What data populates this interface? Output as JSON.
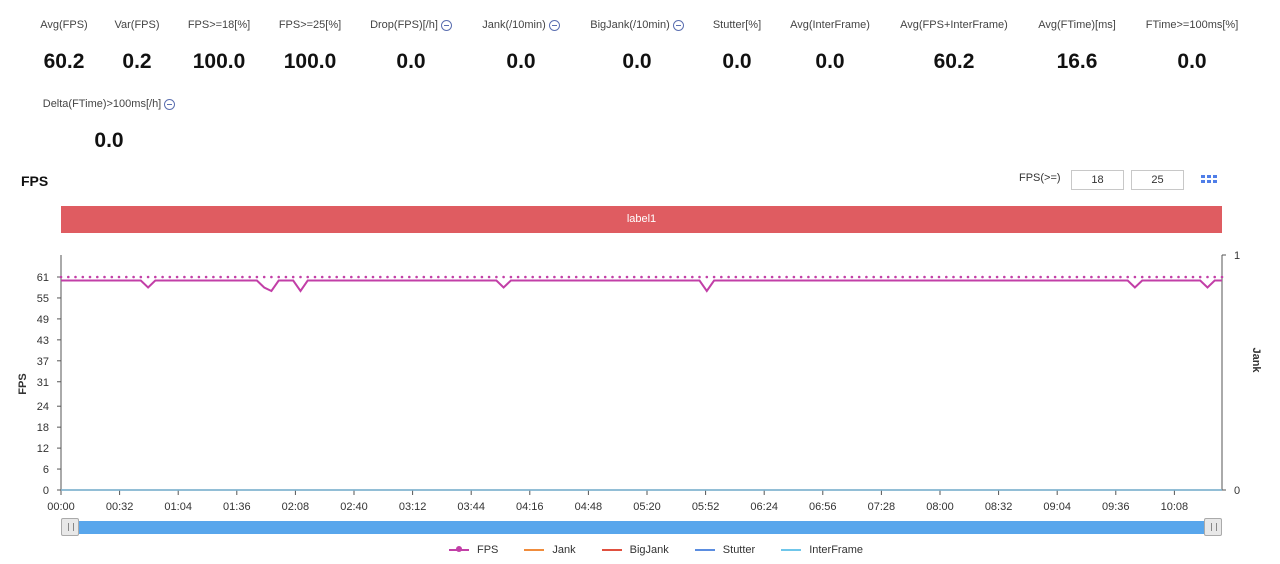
{
  "stats": [
    {
      "label": "Avg(FPS)",
      "value": "60.2",
      "info": false
    },
    {
      "label": "Var(FPS)",
      "value": "0.2",
      "info": false
    },
    {
      "label": "FPS>=18[%]",
      "value": "100.0",
      "info": false
    },
    {
      "label": "FPS>=25[%]",
      "value": "100.0",
      "info": false
    },
    {
      "label": "Drop(FPS)[/h]",
      "value": "0.0",
      "info": true
    },
    {
      "label": "Jank(/10min)",
      "value": "0.0",
      "info": true
    },
    {
      "label": "BigJank(/10min)",
      "value": "0.0",
      "info": true
    },
    {
      "label": "Stutter[%]",
      "value": "0.0",
      "info": false
    },
    {
      "label": "Avg(InterFrame)",
      "value": "0.0",
      "info": false
    },
    {
      "label": "Avg(FPS+InterFrame)",
      "value": "60.2",
      "info": false
    },
    {
      "label": "Avg(FTime)[ms]",
      "value": "16.6",
      "info": false
    },
    {
      "label": "FTime>=100ms[%]",
      "value": "0.0",
      "info": false
    },
    {
      "label": "Delta(FTime)>100ms[/h]",
      "value": "0.0",
      "info": true
    }
  ],
  "chart_title": "FPS",
  "fps_filter": {
    "label": "FPS(>=)",
    "values": [
      "18",
      "25"
    ]
  },
  "grid_icon": "grid-icon",
  "label_bar": "label1",
  "chart_data": {
    "type": "line",
    "yaxis_left": {
      "label": "FPS",
      "ticks": [
        "0",
        "6",
        "12",
        "18",
        "24",
        "31",
        "37",
        "43",
        "49",
        "55",
        "61"
      ],
      "range": [
        0,
        61
      ]
    },
    "yaxis_right": {
      "label": "Jank",
      "ticks": [
        "0",
        "1"
      ],
      "range": [
        0,
        1
      ]
    },
    "x_ticks": [
      "00:00",
      "00:32",
      "01:04",
      "01:36",
      "02:08",
      "02:40",
      "03:12",
      "03:44",
      "04:16",
      "04:48",
      "05:20",
      "05:52",
      "06:24",
      "06:56",
      "07:28",
      "08:00",
      "08:32",
      "09:04",
      "09:36",
      "10:08"
    ],
    "x_range_seconds": [
      0,
      634
    ],
    "grid": false,
    "legend_position": "bottom",
    "series": [
      {
        "name": "FPS",
        "color": "#c23fa7",
        "marker": true,
        "baseline": 60,
        "peak": 61,
        "dips": [
          [
            49,
            58
          ],
          [
            111,
            58
          ],
          [
            114,
            57
          ],
          [
            129,
            57
          ],
          [
            243,
            58
          ],
          [
            351,
            57
          ],
          [
            586,
            58
          ],
          [
            625,
            58
          ]
        ]
      },
      {
        "name": "Jank",
        "color": "#f08c3c",
        "constant": 0
      },
      {
        "name": "BigJank",
        "color": "#e0503f",
        "constant": 0
      },
      {
        "name": "Stutter",
        "color": "#5b8de0",
        "constant": 0
      },
      {
        "name": "InterFrame",
        "color": "#6fc6ea",
        "constant": 0
      }
    ]
  },
  "slider": {
    "start": 0,
    "end": 1
  }
}
